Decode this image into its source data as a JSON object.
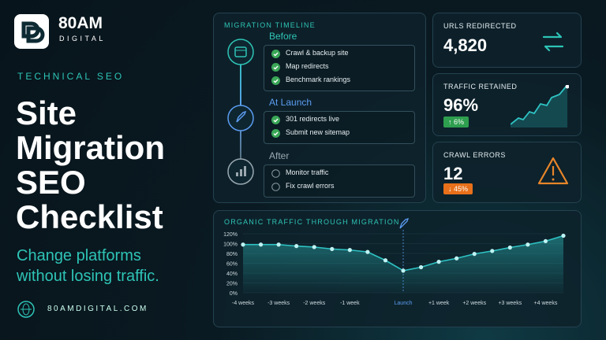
{
  "brand": {
    "name": "80AM",
    "tagline": "DIGITAL"
  },
  "hero": {
    "eyebrow": "TECHNICAL SEO",
    "title": "Site Migration SEO Checklist",
    "subtitle": "Change platforms without losing traffic."
  },
  "footer": {
    "website": "80AMDIGITAL.COM"
  },
  "timeline": {
    "title": "MIGRATION TIMELINE",
    "phases": [
      {
        "label": "Before",
        "color": "#2ec4b6",
        "done": true,
        "items": [
          "Crawl & backup site",
          "Map redirects",
          "Benchmark rankings"
        ]
      },
      {
        "label": "At Launch",
        "color": "#5b9cf0",
        "done": true,
        "items": [
          "301 redirects live",
          "Submit new sitemap"
        ]
      },
      {
        "label": "After",
        "color": "#9aa8b0",
        "done": false,
        "items": [
          "Monitor traffic",
          "Fix crawl errors"
        ]
      }
    ]
  },
  "stats": [
    {
      "label": "URLS REDIRECTED",
      "value": "4,820"
    },
    {
      "label": "TRAFFIC RETAINED",
      "value": "96%",
      "badge": "↑ 6%",
      "badge_color": "#2e9e4f"
    },
    {
      "label": "CRAWL ERRORS",
      "value": "12",
      "badge": "↓ 45%",
      "badge_color": "#e8701a"
    }
  ],
  "chart_data": {
    "type": "line",
    "title": "ORGANIC TRAFFIC THROUGH MIGRATION",
    "categories": [
      "-4 weeks",
      null,
      "-3 weeks",
      null,
      "-2 weeks",
      null,
      "-1 week",
      null,
      null,
      "Launch",
      null,
      "+1 week",
      null,
      "+2 weeks",
      null,
      "+3 weeks",
      null,
      "+4 weeks",
      null
    ],
    "values": [
      98,
      98,
      98,
      95,
      93,
      89,
      87,
      83,
      66,
      45,
      52,
      63,
      70,
      79,
      85,
      92,
      98,
      105,
      116
    ],
    "color": "#2ec4c4",
    "ylim": [
      0,
      120
    ],
    "yticks": [
      {
        "value": 0,
        "label": "0%"
      },
      {
        "value": 20,
        "label": "20%"
      },
      {
        "value": 40,
        "label": "40%"
      },
      {
        "value": 60,
        "label": "60%"
      },
      {
        "value": 80,
        "label": "80%"
      },
      {
        "value": 100,
        "label": "100%"
      },
      {
        "value": 120,
        "label": "120%"
      }
    ],
    "grid": true
  }
}
